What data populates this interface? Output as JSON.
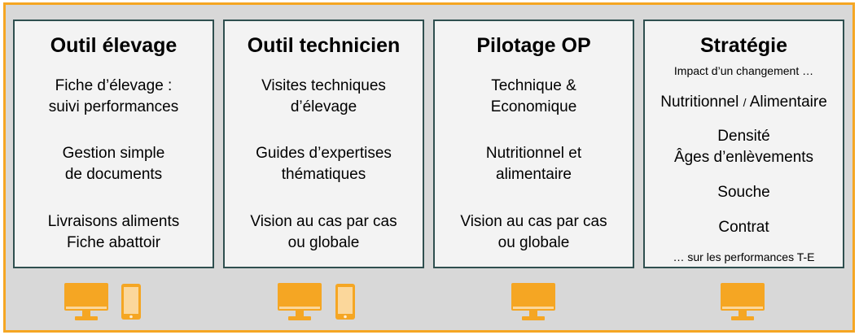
{
  "cards": [
    {
      "title": "Outil élevage",
      "items": [
        [
          "Fiche d’élevage :",
          "suivi performances"
        ],
        [
          "Gestion simple",
          "de documents"
        ],
        [
          "Livraisons aliments",
          "Fiche abattoir"
        ]
      ]
    },
    {
      "title": "Outil technicien",
      "items": [
        [
          "Visites techniques",
          "d’élevage"
        ],
        [
          "Guides d’expertises",
          "thématiques"
        ],
        [
          "Vision au cas par cas",
          "ou globale"
        ]
      ]
    },
    {
      "title": "Pilotage OP",
      "items": [
        [
          "Technique &",
          "Economique"
        ],
        [
          "Nutritionnel et",
          "alimentaire"
        ],
        [
          "Vision au cas par cas",
          "ou globale"
        ]
      ]
    },
    {
      "title": "Stratégie",
      "intro": "Impact d’un changement …",
      "item_nutri_a": "Nutritionnel",
      "item_nutri_sep": "/",
      "item_nutri_b": "Alimentaire",
      "item_density_1": "Densité",
      "item_density_2": "Âges d’enlèvements",
      "item_strain": "Souche",
      "item_contract": "Contrat",
      "outro": "… sur les performances T-E"
    }
  ],
  "devices": [
    {
      "icons": [
        "monitor-icon",
        "phone-icon"
      ]
    },
    {
      "icons": [
        "monitor-icon",
        "phone-icon"
      ]
    },
    {
      "icons": [
        "monitor-icon"
      ]
    },
    {
      "icons": [
        "monitor-icon"
      ]
    }
  ],
  "colors": {
    "accent": "#F5A623",
    "frame_bg": "#d8d8d8",
    "card_bg": "#f3f3f3",
    "card_border": "#2f4f4f"
  }
}
